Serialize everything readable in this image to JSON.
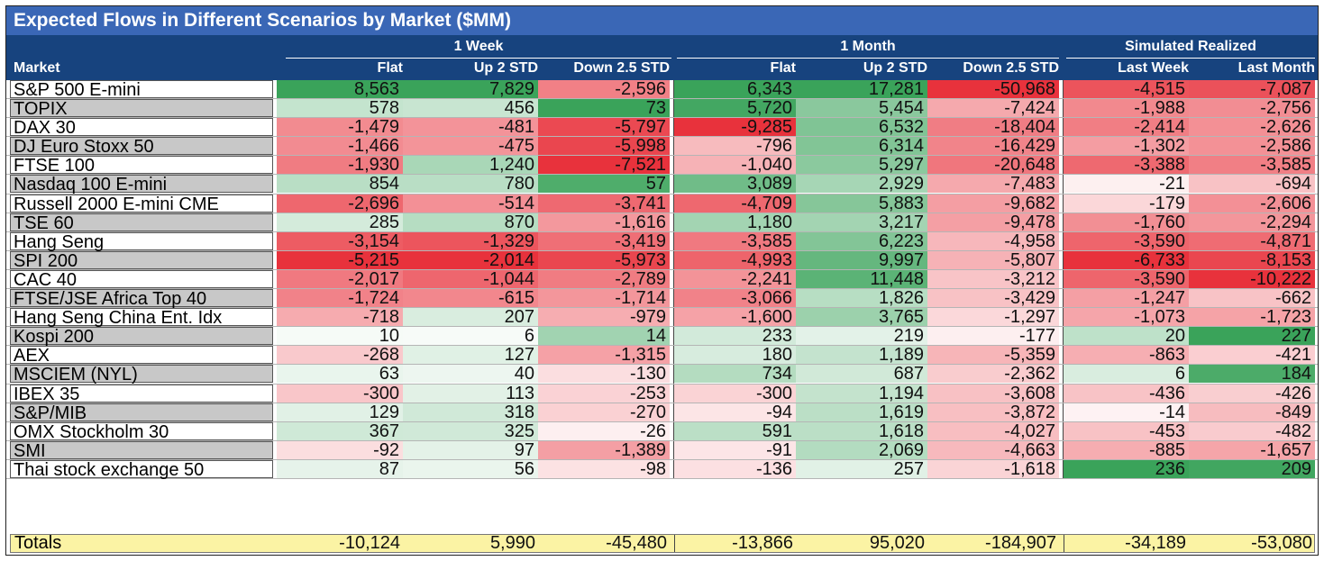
{
  "chart_data": {
    "type": "table",
    "title": "Expected Flows in Different Scenarios by Market ($MM)",
    "column_groups": [
      {
        "label": "1 Week",
        "columns": [
          "Flat",
          "Up 2 STD",
          "Down 2.5 STD"
        ]
      },
      {
        "label": "1 Month",
        "columns": [
          "Flat",
          "Up 2 STD",
          "Down 2.5 STD"
        ]
      },
      {
        "label": "Simulated Realized",
        "columns": [
          "Last Week",
          "Last Month"
        ]
      }
    ],
    "market_header": "Market",
    "rows": [
      {
        "market": "S&P 500 E-mini",
        "values": [
          8563,
          7829,
          -2596,
          6343,
          17281,
          -50968,
          -4515,
          -7087
        ]
      },
      {
        "market": "TOPIX",
        "values": [
          578,
          456,
          73,
          5720,
          5454,
          -7424,
          -1988,
          -2756
        ]
      },
      {
        "market": "DAX 30",
        "values": [
          -1479,
          -481,
          -5797,
          -9285,
          6532,
          -18404,
          -2414,
          -2626
        ]
      },
      {
        "market": "DJ Euro Stoxx 50",
        "values": [
          -1466,
          -475,
          -5998,
          -796,
          6314,
          -16429,
          -1302,
          -2586
        ]
      },
      {
        "market": "FTSE 100",
        "values": [
          -1930,
          1240,
          -7521,
          -1040,
          5297,
          -20648,
          -3388,
          -3585
        ]
      },
      {
        "market": "Nasdaq 100 E-mini",
        "values": [
          854,
          780,
          57,
          3089,
          2929,
          -7483,
          -21,
          -694
        ]
      },
      {
        "market": "Russell 2000 E-mini CME",
        "values": [
          -2696,
          -514,
          -3741,
          -4709,
          5883,
          -9682,
          -179,
          -2606
        ]
      },
      {
        "market": "TSE 60",
        "values": [
          285,
          870,
          -1616,
          1180,
          3217,
          -9478,
          -1760,
          -2294
        ]
      },
      {
        "market": "Hang Seng",
        "values": [
          -3154,
          -1329,
          -3419,
          -3585,
          6223,
          -4958,
          -3590,
          -4871
        ]
      },
      {
        "market": "SPI 200",
        "values": [
          -5215,
          -2014,
          -5973,
          -4993,
          9997,
          -5807,
          -6733,
          -8153
        ]
      },
      {
        "market": "CAC 40",
        "values": [
          -2017,
          -1044,
          -2789,
          -2241,
          11448,
          -3212,
          -3590,
          -10222
        ]
      },
      {
        "market": "FTSE/JSE Africa Top 40",
        "values": [
          -1724,
          -615,
          -1714,
          -3066,
          1826,
          -3429,
          -1247,
          -662
        ]
      },
      {
        "market": "Hang Seng China Ent. Idx",
        "values": [
          -718,
          207,
          -979,
          -1600,
          3765,
          -1297,
          -1073,
          -1723
        ]
      },
      {
        "market": "Kospi 200",
        "values": [
          10,
          6,
          14,
          233,
          219,
          -177,
          20,
          227
        ]
      },
      {
        "market": "AEX",
        "values": [
          -268,
          127,
          -1315,
          180,
          1189,
          -5359,
          -863,
          -421
        ]
      },
      {
        "market": "MSCIEM (NYL)",
        "values": [
          63,
          40,
          -130,
          734,
          687,
          -2362,
          6,
          184
        ]
      },
      {
        "market": "IBEX 35",
        "values": [
          -300,
          113,
          -253,
          -300,
          1194,
          -3608,
          -436,
          -426
        ]
      },
      {
        "market": "S&P/MIB",
        "values": [
          129,
          318,
          -270,
          -94,
          1619,
          -3872,
          -14,
          -849
        ]
      },
      {
        "market": "OMX Stockholm 30",
        "values": [
          367,
          325,
          -26,
          591,
          1618,
          -4027,
          -453,
          -482
        ]
      },
      {
        "market": "SMI",
        "values": [
          -92,
          97,
          -1389,
          -91,
          2069,
          -4663,
          -885,
          -1657
        ]
      },
      {
        "market": "Thai stock exchange 50",
        "values": [
          87,
          56,
          -98,
          -136,
          257,
          -1618,
          236,
          209
        ]
      }
    ],
    "totals_label": "Totals",
    "totals": [
      -10124,
      5990,
      -45480,
      -13866,
      95020,
      -184907,
      -34189,
      -53080
    ],
    "colors": {
      "title_bg": "#3a67b6",
      "header_bg": "#17437e",
      "positive": "#3aa35a",
      "negative": "#e8323c",
      "neutral": "#ffffff",
      "totals_bg": "#fbf3a4"
    }
  }
}
